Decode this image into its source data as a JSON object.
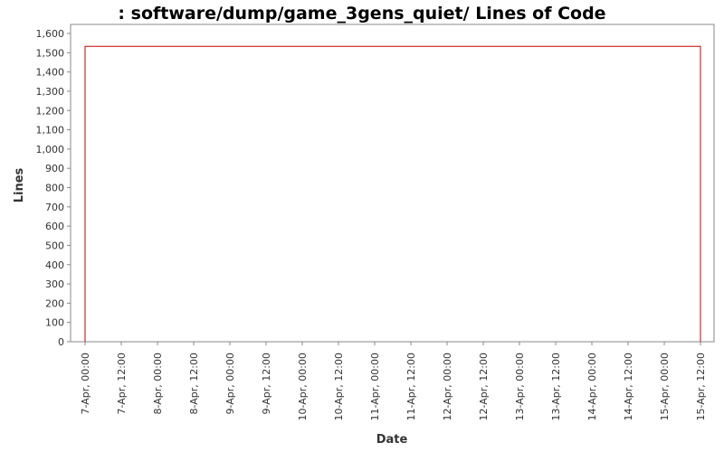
{
  "chart_data": {
    "type": "line",
    "title": ": software/dump/game_3gens_quiet/ Lines of Code",
    "xlabel": "Date",
    "ylabel": "Lines",
    "ylim": [
      0,
      1600
    ],
    "y_ticks": [
      0,
      100,
      200,
      300,
      400,
      500,
      600,
      700,
      800,
      900,
      1000,
      1100,
      1200,
      1300,
      1400,
      1500,
      1600
    ],
    "y_tick_labels": [
      "0",
      "100",
      "200",
      "300",
      "400",
      "500",
      "600",
      "700",
      "800",
      "900",
      "1,000",
      "1,100",
      "1,200",
      "1,300",
      "1,400",
      "1,500",
      "1,600"
    ],
    "x_tick_labels": [
      "7-Apr, 00:00",
      "7-Apr, 12:00",
      "8-Apr, 00:00",
      "8-Apr, 12:00",
      "9-Apr, 00:00",
      "9-Apr, 12:00",
      "10-Apr, 00:00",
      "10-Apr, 12:00",
      "11-Apr, 00:00",
      "11-Apr, 12:00",
      "12-Apr, 00:00",
      "12-Apr, 12:00",
      "13-Apr, 00:00",
      "13-Apr, 12:00",
      "14-Apr, 00:00",
      "14-Apr, 12:00",
      "15-Apr, 00:00",
      "15-Apr, 12:00"
    ],
    "series": [
      {
        "color": "#cc0000",
        "points": [
          {
            "x": "7-Apr, 00:00",
            "y": 0
          },
          {
            "x": "7-Apr, 00:00",
            "y": 1533
          },
          {
            "x": "15-Apr, 12:00",
            "y": 1533
          },
          {
            "x": "15-Apr, 12:00",
            "y": 0
          }
        ]
      }
    ],
    "grid": false,
    "legend": "none"
  }
}
